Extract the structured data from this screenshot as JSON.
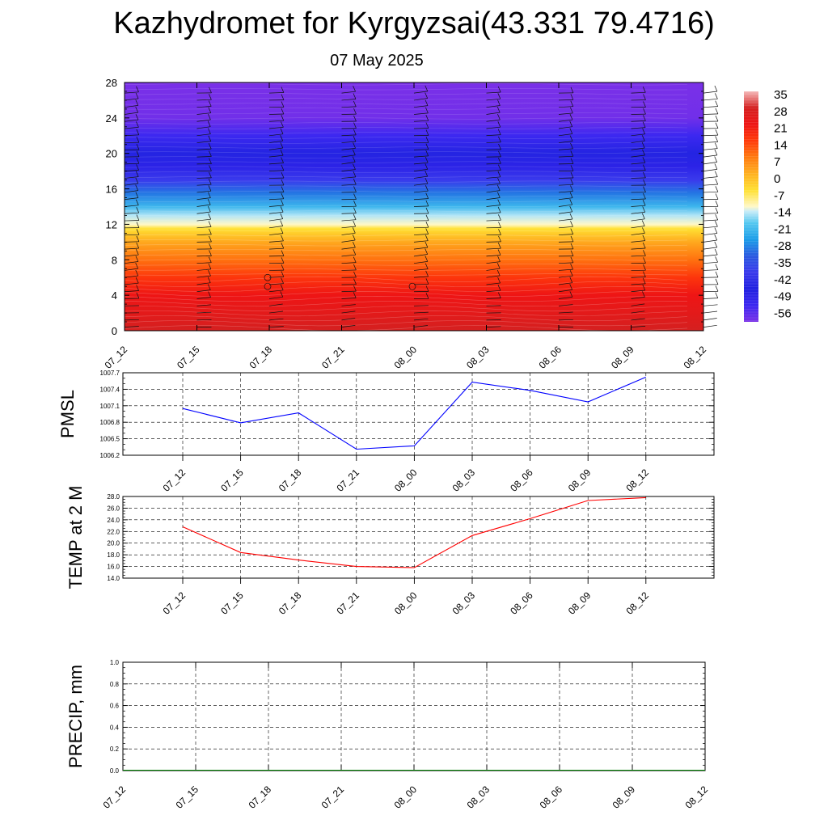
{
  "title": "Kazhydromet for Kyrgyzsai(43.331 79.4716)",
  "subtitle": "07 May 2025",
  "chart_data": [
    {
      "type": "heatmap",
      "name": "vertical-temperature-section",
      "x_ticks": [
        "07_12",
        "07_15",
        "07_18",
        "07_21",
        "08_00",
        "08_03",
        "08_06",
        "08_09",
        "08_12"
      ],
      "y_ticks": [
        0,
        4,
        8,
        12,
        16,
        20,
        24,
        28
      ],
      "ylim": [
        0,
        28
      ],
      "colorbar": {
        "labels": [
          "35",
          "28",
          "21",
          "14",
          "7",
          "0",
          "-7",
          "-14",
          "-21",
          "-28",
          "-35",
          "-42",
          "-49",
          "-56"
        ],
        "stops": [
          {
            "v": 35,
            "color": "#f5b8b8"
          },
          {
            "v": 28,
            "color": "#d42020"
          },
          {
            "v": 21,
            "color": "#ee1515"
          },
          {
            "v": 14,
            "color": "#ff3a0a"
          },
          {
            "v": 7,
            "color": "#ff7a10"
          },
          {
            "v": 0,
            "color": "#ffb020"
          },
          {
            "v": -7,
            "color": "#ffe033"
          },
          {
            "v": -14,
            "color": "#fff8c8"
          },
          {
            "v": -16,
            "color": "#c8ecf8"
          },
          {
            "v": -21,
            "color": "#55c8f0"
          },
          {
            "v": -28,
            "color": "#1c9de8"
          },
          {
            "v": -35,
            "color": "#2a5ae0"
          },
          {
            "v": -42,
            "color": "#3a3aec"
          },
          {
            "v": -49,
            "color": "#2020e0"
          },
          {
            "v": -56,
            "color": "#3c28f0"
          },
          {
            "v": -63,
            "color": "#7a30e8"
          }
        ]
      },
      "temperature_profile": [
        {
          "h": 0,
          "t": 28
        },
        {
          "h": 2,
          "t": 24
        },
        {
          "h": 4,
          "t": 21
        },
        {
          "h": 6,
          "t": 15
        },
        {
          "h": 8,
          "t": 8
        },
        {
          "h": 10,
          "t": 1
        },
        {
          "h": 11.5,
          "t": -7
        },
        {
          "h": 12,
          "t": -14
        },
        {
          "h": 13,
          "t": -17
        },
        {
          "h": 14,
          "t": -24
        },
        {
          "h": 15.5,
          "t": -32
        },
        {
          "h": 17,
          "t": -42
        },
        {
          "h": 18.5,
          "t": -52
        },
        {
          "h": 20,
          "t": -48
        },
        {
          "h": 22,
          "t": -56
        },
        {
          "h": 24,
          "t": -62
        },
        {
          "h": 28,
          "t": -63
        }
      ]
    },
    {
      "type": "line",
      "name": "pmsl",
      "ylabel": "PMSL",
      "categories": [
        "07_12",
        "07_15",
        "07_18",
        "07_21",
        "08_00",
        "08_03",
        "08_06",
        "08_09",
        "08_12"
      ],
      "series": [
        {
          "values": [
            1007.05,
            1006.79,
            1006.97,
            1006.31,
            1006.37,
            1007.53,
            1007.38,
            1007.17,
            1007.62
          ],
          "color": "#0000ff"
        }
      ],
      "y_ticks": [
        "1006.2",
        "1006.5",
        "1006.8",
        "1007.1",
        "1007.4",
        "1007.7"
      ],
      "ylim": [
        1006.2,
        1007.7
      ]
    },
    {
      "type": "line",
      "name": "temp-2m",
      "ylabel": "TEMP at 2 M",
      "categories": [
        "07_12",
        "07_15",
        "07_18",
        "07_21",
        "08_00",
        "08_03",
        "08_06",
        "08_09",
        "08_12"
      ],
      "series": [
        {
          "values": [
            22.8,
            18.4,
            17.1,
            16.0,
            15.8,
            21.3,
            24.2,
            27.3,
            27.8
          ],
          "color": "#ff0000"
        }
      ],
      "y_ticks": [
        "14.0",
        "16.0",
        "18.0",
        "20.0",
        "22.0",
        "24.0",
        "26.0",
        "28.0"
      ],
      "ylim": [
        14,
        28
      ]
    },
    {
      "type": "line",
      "name": "precip",
      "ylabel": "PRECIP, mm",
      "categories": [
        "07_12",
        "07_15",
        "07_18",
        "07_21",
        "08_00",
        "08_03",
        "08_06",
        "08_09",
        "08_12"
      ],
      "series": [
        {
          "values": [
            0,
            0,
            0,
            0,
            0,
            0,
            0,
            0,
            0
          ],
          "color": "#008000"
        }
      ],
      "y_ticks": [
        "0.0",
        "0.2",
        "0.4",
        "0.6",
        "0.8",
        "1.0"
      ],
      "ylim": [
        0,
        1
      ]
    }
  ]
}
